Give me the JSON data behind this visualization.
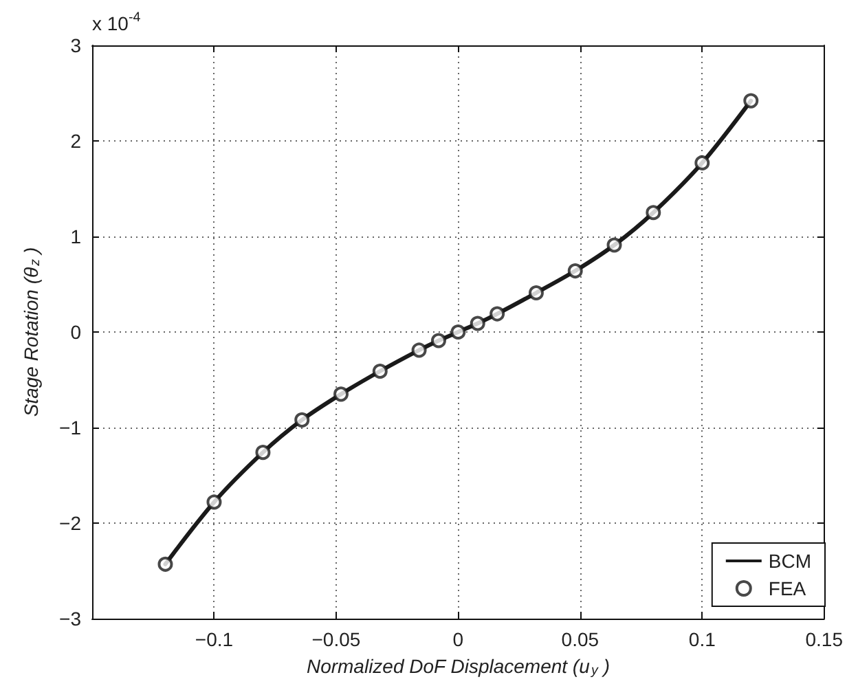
{
  "chart_data": {
    "type": "line",
    "xlabel": "Normalized DoF Displacement (u$_{y}$)",
    "ylabel": "Stage Rotation (θ$_{z}$)",
    "annotations": [
      "x 10$^{-4}$"
    ],
    "series": [
      {
        "name": "BCM",
        "color": "#1a1a1a",
        "marker": "none",
        "line_style": "solid",
        "x": [
          -0.12,
          -0.1,
          -0.08,
          -0.064,
          -0.048,
          -0.032,
          -0.016,
          -0.008,
          0,
          0.008,
          0.016,
          0.032,
          0.048,
          0.064,
          0.08,
          0.1,
          0.12
        ],
        "values": [
          -2.43,
          -1.78,
          -1.26,
          -0.92,
          -0.65,
          -0.41,
          -0.19,
          -0.09,
          0,
          0.09,
          0.19,
          0.41,
          0.64,
          0.91,
          1.25,
          1.77,
          2.42
        ]
      },
      {
        "name": "FEA",
        "type": "scatter",
        "color": "#1a1a1a",
        "marker": "circle",
        "x": [
          -0.12,
          -0.1,
          -0.08,
          -0.064,
          -0.048,
          -0.032,
          -0.016,
          -0.008,
          0,
          0.008,
          0.016,
          0.032,
          0.048,
          0.064,
          0.08,
          0.1,
          0.12
        ],
        "values": [
          -2.43,
          -1.78,
          -1.26,
          -0.92,
          -0.65,
          -0.41,
          -0.19,
          -0.09,
          0,
          0.09,
          0.19,
          0.41,
          0.64,
          0.91,
          1.25,
          1.77,
          2.42
        ]
      }
    ],
    "xlim": [
      -0.15,
      0.15
    ],
    "xticks": [
      -0.1,
      -0.05,
      0,
      0.05,
      0.1,
      0.15
    ],
    "ylim": [
      -3,
      3
    ],
    "yticks": [
      -3,
      -2,
      -1,
      0,
      1,
      2,
      3
    ],
    "grid": true,
    "legend": "bottom right"
  }
}
